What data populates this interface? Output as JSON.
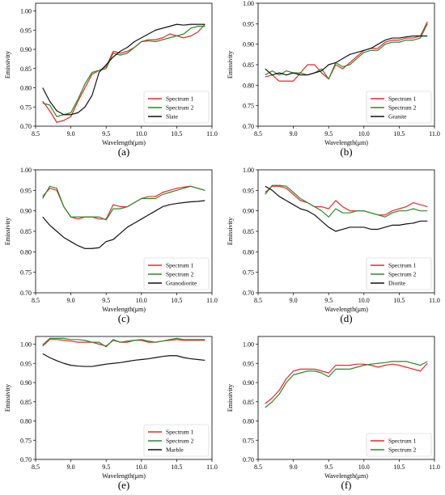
{
  "figure": {
    "panel_letters": [
      "(a)",
      "(b)",
      "(c)",
      "(d)",
      "(e)",
      "(f)"
    ]
  },
  "colors": {
    "spectrum1": "#e8282b",
    "spectrum2": "#2a8a2a",
    "reference": "#111111"
  },
  "chart_data": [
    {
      "type": "line",
      "xlabel": "Wavelength(μm)",
      "ylabel": "Emissivity",
      "xlim": [
        8.5,
        11.0
      ],
      "ylim": [
        0.7,
        1.02
      ],
      "xticks": [
        "8.5",
        "9.0",
        "9.5",
        "10.0",
        "10.5",
        "11.0"
      ],
      "yticks": [
        "0.70",
        "0.75",
        "0.80",
        "0.85",
        "0.90",
        "0.95",
        "1.00"
      ],
      "legend_position": "lower-right",
      "x": [
        8.6,
        8.7,
        8.8,
        8.9,
        9.0,
        9.1,
        9.2,
        9.3,
        9.4,
        9.5,
        9.6,
        9.7,
        9.8,
        9.9,
        10.0,
        10.1,
        10.2,
        10.3,
        10.4,
        10.5,
        10.6,
        10.7,
        10.8,
        10.9
      ],
      "series": [
        {
          "name": "Spectrum 1",
          "color": "spectrum1",
          "values": [
            0.765,
            0.74,
            0.71,
            0.715,
            0.725,
            0.765,
            0.8,
            0.835,
            0.845,
            0.855,
            0.895,
            0.89,
            0.895,
            0.905,
            0.92,
            0.925,
            0.925,
            0.93,
            0.94,
            0.935,
            0.93,
            0.935,
            0.945,
            0.965
          ]
        },
        {
          "name": "Spectrum 2",
          "color": "spectrum2",
          "values": [
            0.76,
            0.755,
            0.725,
            0.73,
            0.735,
            0.77,
            0.81,
            0.84,
            0.845,
            0.85,
            0.89,
            0.885,
            0.89,
            0.905,
            0.92,
            0.922,
            0.92,
            0.925,
            0.93,
            0.935,
            0.94,
            0.955,
            0.96,
            0.96
          ]
        },
        {
          "name": "Slate",
          "color": "reference",
          "values": [
            0.8,
            0.765,
            0.74,
            0.73,
            0.73,
            0.735,
            0.75,
            0.78,
            0.84,
            0.86,
            0.88,
            0.895,
            0.905,
            0.92,
            0.93,
            0.94,
            0.95,
            0.955,
            0.96,
            0.965,
            0.963,
            0.965,
            0.965,
            0.965
          ]
        }
      ]
    },
    {
      "type": "line",
      "xlabel": "Wavelength(μm)",
      "ylabel": "Emissivity",
      "xlim": [
        8.5,
        11.0
      ],
      "ylim": [
        0.7,
        1.0
      ],
      "xticks": [
        "8.5",
        "9.0",
        "9.5",
        "10.0",
        "10.5",
        "11.0"
      ],
      "yticks": [
        "0.70",
        "0.75",
        "0.80",
        "0.85",
        "0.90",
        "0.95",
        "1.00"
      ],
      "legend_position": "lower-right",
      "x": [
        8.6,
        8.7,
        8.8,
        8.9,
        9.0,
        9.1,
        9.2,
        9.3,
        9.4,
        9.5,
        9.6,
        9.7,
        9.8,
        9.9,
        10.0,
        10.1,
        10.2,
        10.3,
        10.4,
        10.5,
        10.6,
        10.7,
        10.8,
        10.9
      ],
      "series": [
        {
          "name": "Spectrum 1",
          "color": "spectrum1",
          "values": [
            0.82,
            0.825,
            0.81,
            0.81,
            0.81,
            0.83,
            0.85,
            0.85,
            0.83,
            0.815,
            0.85,
            0.84,
            0.855,
            0.87,
            0.885,
            0.89,
            0.89,
            0.905,
            0.91,
            0.91,
            0.915,
            0.915,
            0.92,
            0.955
          ]
        },
        {
          "name": "Spectrum 2",
          "color": "spectrum2",
          "values": [
            0.825,
            0.835,
            0.825,
            0.835,
            0.83,
            0.83,
            0.825,
            0.83,
            0.84,
            0.815,
            0.855,
            0.845,
            0.85,
            0.865,
            0.88,
            0.885,
            0.885,
            0.9,
            0.905,
            0.905,
            0.91,
            0.91,
            0.915,
            0.95
          ]
        },
        {
          "name": "Granite",
          "color": "reference",
          "values": [
            0.84,
            0.825,
            0.83,
            0.825,
            0.83,
            0.825,
            0.825,
            0.83,
            0.835,
            0.85,
            0.855,
            0.865,
            0.875,
            0.88,
            0.885,
            0.89,
            0.9,
            0.91,
            0.915,
            0.915,
            0.918,
            0.92,
            0.92,
            0.92
          ]
        }
      ]
    },
    {
      "type": "line",
      "xlabel": "Wavelength(μm)",
      "ylabel": "Emissivity",
      "xlim": [
        8.5,
        11.0
      ],
      "ylim": [
        0.7,
        1.0
      ],
      "xticks": [
        "8.5",
        "9.0",
        "9.5",
        "10.0",
        "10.5",
        "11.0"
      ],
      "yticks": [
        "0.70",
        "0.75",
        "0.80",
        "0.85",
        "0.90",
        "0.95",
        "1.00"
      ],
      "legend_position": "lower-right",
      "x": [
        8.6,
        8.7,
        8.8,
        8.9,
        9.0,
        9.1,
        9.2,
        9.3,
        9.4,
        9.5,
        9.6,
        9.7,
        9.8,
        9.9,
        10.0,
        10.1,
        10.2,
        10.3,
        10.4,
        10.5,
        10.6,
        10.7,
        10.8,
        10.9
      ],
      "series": [
        {
          "name": "Spectrum 1",
          "color": "spectrum1",
          "values": [
            0.935,
            0.955,
            0.95,
            0.91,
            0.885,
            0.88,
            0.885,
            0.885,
            0.88,
            0.88,
            0.915,
            0.91,
            0.91,
            0.92,
            0.93,
            0.935,
            0.935,
            0.945,
            0.95,
            0.955,
            0.958,
            0.96,
            0.955,
            0.95
          ]
        },
        {
          "name": "Spectrum 2",
          "color": "spectrum2",
          "values": [
            0.93,
            0.96,
            0.955,
            0.91,
            0.885,
            0.885,
            0.885,
            0.885,
            0.885,
            0.878,
            0.905,
            0.905,
            0.91,
            0.92,
            0.93,
            0.93,
            0.93,
            0.94,
            0.945,
            0.95,
            0.955,
            0.96,
            0.955,
            0.95
          ]
        },
        {
          "name": "Granodiorite",
          "color": "reference",
          "values": [
            0.885,
            0.865,
            0.85,
            0.835,
            0.825,
            0.815,
            0.808,
            0.808,
            0.81,
            0.825,
            0.83,
            0.845,
            0.86,
            0.87,
            0.88,
            0.89,
            0.9,
            0.91,
            0.915,
            0.918,
            0.92,
            0.922,
            0.923,
            0.925
          ]
        }
      ]
    },
    {
      "type": "line",
      "xlabel": "Wavelength(μm)",
      "ylabel": "Emissivity",
      "xlim": [
        8.5,
        11.0
      ],
      "ylim": [
        0.7,
        1.0
      ],
      "xticks": [
        "8.5",
        "9.0",
        "9.5",
        "10.0",
        "10.5",
        "11.0"
      ],
      "yticks": [
        "0.70",
        "0.75",
        "0.80",
        "0.85",
        "0.90",
        "0.95",
        "1.00"
      ],
      "legend_position": "lower-right",
      "x": [
        8.6,
        8.7,
        8.8,
        8.9,
        9.0,
        9.1,
        9.2,
        9.3,
        9.4,
        9.5,
        9.6,
        9.7,
        9.8,
        9.9,
        10.0,
        10.1,
        10.2,
        10.3,
        10.4,
        10.5,
        10.6,
        10.7,
        10.8,
        10.9
      ],
      "series": [
        {
          "name": "Spectrum 1",
          "color": "spectrum1",
          "values": [
            0.945,
            0.96,
            0.96,
            0.955,
            0.94,
            0.925,
            0.92,
            0.91,
            0.91,
            0.905,
            0.925,
            0.91,
            0.9,
            0.9,
            0.9,
            0.895,
            0.89,
            0.89,
            0.9,
            0.905,
            0.91,
            0.92,
            0.915,
            0.91
          ]
        },
        {
          "name": "Spectrum 2",
          "color": "spectrum2",
          "values": [
            0.94,
            0.962,
            0.962,
            0.96,
            0.945,
            0.93,
            0.92,
            0.91,
            0.9,
            0.885,
            0.905,
            0.895,
            0.895,
            0.9,
            0.9,
            0.895,
            0.89,
            0.885,
            0.895,
            0.9,
            0.9,
            0.905,
            0.9,
            0.9
          ]
        },
        {
          "name": "Diorite",
          "color": "reference",
          "values": [
            0.96,
            0.95,
            0.935,
            0.925,
            0.915,
            0.905,
            0.9,
            0.89,
            0.875,
            0.86,
            0.85,
            0.855,
            0.86,
            0.86,
            0.86,
            0.855,
            0.855,
            0.86,
            0.865,
            0.865,
            0.868,
            0.87,
            0.875,
            0.875
          ]
        }
      ]
    },
    {
      "type": "line",
      "xlabel": "Wavelength(μm)",
      "ylabel": "Emissivity",
      "xlim": [
        8.5,
        11.0
      ],
      "ylim": [
        0.7,
        1.02
      ],
      "xticks": [
        "8.5",
        "9.0",
        "9.5",
        "10.0",
        "10.5",
        "11.0"
      ],
      "yticks": [
        "0.70",
        "0.75",
        "0.80",
        "0.85",
        "0.90",
        "0.95",
        "1.00"
      ],
      "legend_position": "lower-right",
      "x": [
        8.6,
        8.7,
        8.8,
        8.9,
        9.0,
        9.1,
        9.2,
        9.3,
        9.4,
        9.5,
        9.6,
        9.7,
        9.8,
        9.9,
        10.0,
        10.1,
        10.2,
        10.3,
        10.4,
        10.5,
        10.6,
        10.7,
        10.8,
        10.9
      ],
      "series": [
        {
          "name": "Spectrum 1",
          "color": "spectrum1",
          "values": [
            0.995,
            1.012,
            1.012,
            1.01,
            1.008,
            1.005,
            1.005,
            1.005,
            1.0,
            0.995,
            1.01,
            1.005,
            1.005,
            1.01,
            1.01,
            1.005,
            1.005,
            1.008,
            1.01,
            1.012,
            1.01,
            1.01,
            1.01,
            1.01
          ]
        },
        {
          "name": "Spectrum 2",
          "color": "spectrum2",
          "values": [
            0.998,
            1.015,
            1.015,
            1.015,
            1.012,
            1.012,
            1.01,
            1.005,
            1.005,
            0.993,
            1.012,
            1.005,
            1.008,
            1.01,
            1.012,
            1.008,
            1.005,
            1.008,
            1.012,
            1.015,
            1.012,
            1.012,
            1.012,
            1.012
          ]
        },
        {
          "name": "Marble",
          "color": "reference",
          "values": [
            0.975,
            0.965,
            0.957,
            0.95,
            0.945,
            0.943,
            0.942,
            0.942,
            0.945,
            0.948,
            0.95,
            0.952,
            0.955,
            0.958,
            0.96,
            0.962,
            0.965,
            0.968,
            0.97,
            0.97,
            0.965,
            0.962,
            0.96,
            0.958
          ]
        }
      ]
    },
    {
      "type": "line",
      "xlabel": "Wavelength(μm)",
      "ylabel": "Emissivity",
      "xlim": [
        8.5,
        11.0
      ],
      "ylim": [
        0.7,
        1.02
      ],
      "xticks": [
        "8.5",
        "9.0",
        "9.5",
        "10.0",
        "10.5",
        "11.0"
      ],
      "yticks": [
        "0.70",
        "0.75",
        "0.80",
        "0.85",
        "0.90",
        "0.95",
        "1.00"
      ],
      "legend_position": "lower-right",
      "x": [
        8.6,
        8.7,
        8.8,
        8.9,
        9.0,
        9.1,
        9.2,
        9.3,
        9.4,
        9.5,
        9.6,
        9.7,
        9.8,
        9.9,
        10.0,
        10.1,
        10.2,
        10.3,
        10.4,
        10.5,
        10.6,
        10.7,
        10.8,
        10.9
      ],
      "series": [
        {
          "name": "Spectrum 1",
          "color": "spectrum1",
          "values": [
            0.845,
            0.86,
            0.88,
            0.91,
            0.93,
            0.935,
            0.935,
            0.935,
            0.93,
            0.925,
            0.945,
            0.945,
            0.945,
            0.948,
            0.948,
            0.945,
            0.94,
            0.945,
            0.948,
            0.945,
            0.94,
            0.935,
            0.93,
            0.95
          ]
        },
        {
          "name": "Spectrum 2",
          "color": "spectrum2",
          "values": [
            0.835,
            0.85,
            0.87,
            0.9,
            0.92,
            0.925,
            0.93,
            0.93,
            0.925,
            0.915,
            0.935,
            0.935,
            0.935,
            0.94,
            0.945,
            0.948,
            0.95,
            0.952,
            0.955,
            0.955,
            0.955,
            0.95,
            0.945,
            0.955
          ]
        }
      ]
    }
  ]
}
